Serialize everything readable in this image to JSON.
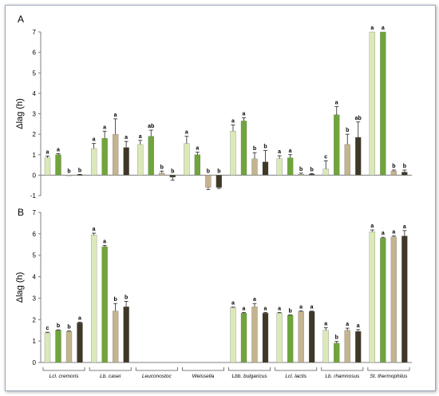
{
  "figure": {
    "series_colors": [
      "#dbe9b8",
      "#6fa53a",
      "#c4b48f",
      "#3f3828"
    ],
    "groups": [
      "Lcl. cremoris",
      "Lb. casei",
      "Leuconostoc",
      "Weissella",
      "Lbb. bulgaricus",
      "Lcl. lactis",
      "Lb. rhamnosus",
      "St. thermophilus"
    ]
  },
  "chart_data": [
    {
      "type": "bar",
      "panel_label": "A",
      "ylabel": "Δlag (h)",
      "ylim": [
        -1,
        7
      ],
      "yticks": [
        -1,
        0,
        1,
        2,
        3,
        4,
        5,
        6,
        7
      ],
      "series": [
        {
          "values": [
            0.85,
            1.3,
            1.5,
            1.55,
            2.15,
            0.8,
            0.3,
            7.0
          ],
          "errors": [
            0.08,
            0.25,
            0.2,
            0.35,
            0.3,
            0.15,
            0.4,
            0.0
          ],
          "letters": [
            "a",
            "a",
            "a",
            "a",
            "a",
            "a",
            "c",
            "a"
          ]
        },
        {
          "values": [
            1.0,
            1.8,
            1.9,
            1.0,
            2.65,
            0.85,
            2.95,
            7.0
          ],
          "errors": [
            0.05,
            0.35,
            0.3,
            0.12,
            0.15,
            0.15,
            0.4,
            0.0
          ],
          "letters": [
            "a",
            "a",
            "ab",
            "a",
            "a",
            "a",
            "a",
            "a"
          ]
        },
        {
          "values": [
            0.0,
            2.0,
            0.1,
            -0.6,
            0.8,
            0.05,
            1.5,
            0.2
          ],
          "errors": [
            0.0,
            0.75,
            0.1,
            0.1,
            0.3,
            0.05,
            0.5,
            0.05
          ],
          "letters": [
            "b",
            "a",
            "b",
            "b",
            "b",
            "b",
            "b",
            "b"
          ]
        },
        {
          "values": [
            0.02,
            1.35,
            -0.1,
            -0.6,
            0.65,
            0.05,
            1.85,
            0.15
          ],
          "errors": [
            0.02,
            0.3,
            0.15,
            0.05,
            0.55,
            0.03,
            0.75,
            0.1
          ],
          "letters": [
            "b",
            "a",
            "b",
            "b",
            "b",
            "b",
            "ab",
            "b"
          ]
        }
      ]
    },
    {
      "type": "bar",
      "panel_label": "B",
      "ylabel": "Δlag (h)",
      "ylim": [
        0,
        7
      ],
      "yticks": [
        0,
        1,
        2,
        3,
        4,
        5,
        6,
        7
      ],
      "series": [
        {
          "values": [
            1.38,
            5.95,
            null,
            null,
            2.55,
            2.3,
            1.5,
            6.1
          ],
          "errors": [
            0.03,
            0.08,
            null,
            null,
            0.03,
            0.03,
            0.12,
            0.08
          ],
          "letters": [
            "c",
            "a",
            "",
            "",
            "a",
            "a",
            "a",
            "a"
          ]
        },
        {
          "values": [
            1.5,
            5.4,
            null,
            null,
            2.3,
            2.2,
            0.9,
            5.8
          ],
          "errors": [
            0.02,
            0.06,
            null,
            null,
            0.03,
            0.02,
            0.08,
            0.04
          ],
          "letters": [
            "b",
            "a",
            "",
            "",
            "a",
            "b",
            "b",
            "a"
          ]
        },
        {
          "values": [
            1.45,
            2.4,
            null,
            null,
            2.6,
            2.38,
            1.5,
            5.85
          ],
          "errors": [
            0.02,
            0.35,
            null,
            null,
            0.15,
            0.03,
            0.1,
            0.05
          ],
          "letters": [
            "b",
            "b",
            "",
            "",
            "a",
            "a",
            "a",
            "a"
          ]
        },
        {
          "values": [
            1.85,
            2.6,
            null,
            null,
            2.3,
            2.38,
            1.45,
            5.9
          ],
          "errors": [
            0.03,
            0.25,
            null,
            null,
            0.03,
            0.02,
            0.08,
            0.25
          ],
          "letters": [
            "a",
            "b",
            "",
            "",
            "a",
            "a",
            "a",
            "a"
          ]
        }
      ]
    }
  ]
}
